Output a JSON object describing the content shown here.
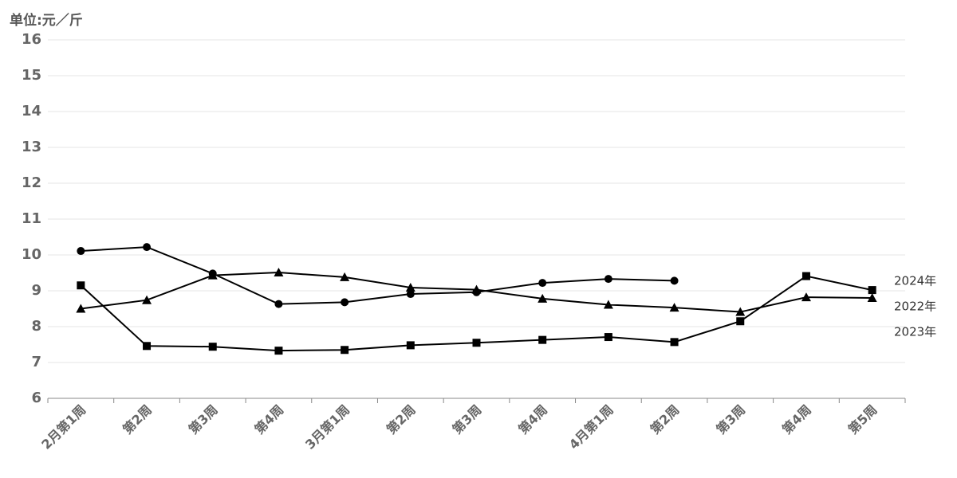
{
  "chart_data": {
    "type": "line",
    "y_label": "单位:元／斤",
    "categories": [
      "2月第1周",
      "第2周",
      "第3周",
      "第4周",
      "3月第1周",
      "第2周",
      "第3周",
      "第4周",
      "4月第1周",
      "第2周",
      "第3周",
      "第4周",
      "第5周"
    ],
    "series": [
      {
        "name": "2024年",
        "color": "#000000",
        "marker": "circle",
        "values": [
          10.11,
          10.22,
          9.48,
          8.63,
          8.68,
          8.91,
          8.96,
          9.22,
          9.33,
          9.28,
          null,
          null,
          null
        ]
      },
      {
        "name": "2022年",
        "color": "#000000",
        "marker": "triangle",
        "values": [
          8.5,
          8.74,
          9.43,
          9.51,
          9.38,
          9.09,
          9.03,
          8.78,
          8.61,
          8.53,
          8.41,
          8.82,
          8.8
        ]
      },
      {
        "name": "2023年",
        "color": "#000000",
        "marker": "square",
        "values": [
          9.15,
          7.46,
          7.44,
          7.33,
          7.35,
          7.48,
          7.55,
          7.63,
          7.71,
          7.57,
          8.15,
          9.41,
          9.02
        ]
      }
    ],
    "ylim": [
      6,
      16
    ],
    "yticks": [
      6,
      7,
      8,
      9,
      10,
      11,
      12,
      13,
      14,
      15,
      16
    ],
    "grid": true
  }
}
